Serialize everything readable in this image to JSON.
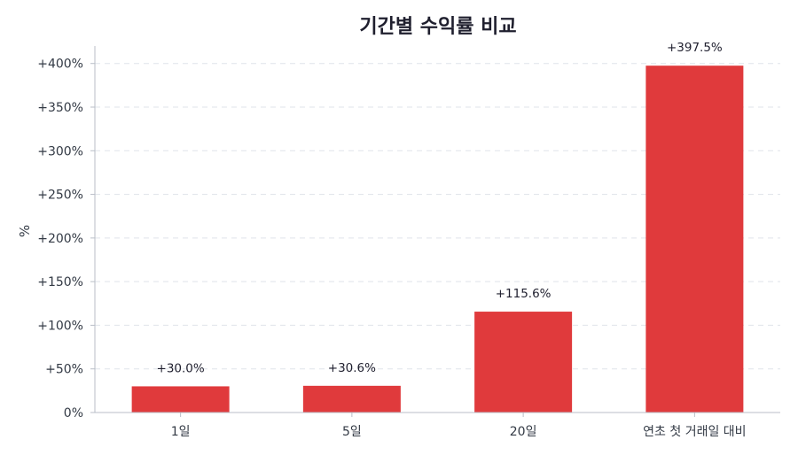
{
  "chart_data": {
    "type": "bar",
    "title": "기간별 수익률 비교",
    "xlabel": "",
    "ylabel": "%",
    "categories": [
      "1일",
      "5일",
      "20일",
      "연초 첫 거래일 대비"
    ],
    "values": [
      30.0,
      30.6,
      115.6,
      397.5
    ],
    "data_labels": [
      "+30.0%",
      "+30.6%",
      "+115.6%",
      "+397.5%"
    ],
    "ylim": [
      0,
      420
    ],
    "yticks": [
      0,
      50,
      100,
      150,
      200,
      250,
      300,
      350,
      400
    ],
    "ytick_labels": [
      "0%",
      "+50%",
      "+100%",
      "+150%",
      "+200%",
      "+250%",
      "+300%",
      "+350%",
      "+400%"
    ],
    "grid": true,
    "bar_color": "#e03a3c"
  }
}
